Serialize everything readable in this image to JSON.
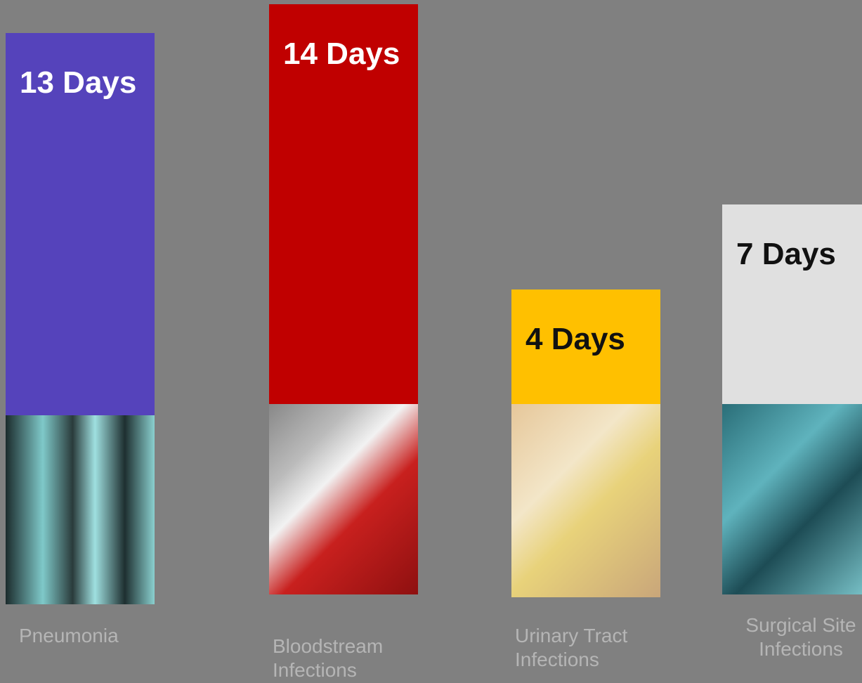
{
  "chart_data": {
    "type": "bar",
    "categories": [
      "Pneumonia",
      "Bloodstream\nInfections",
      "Urinary Tract\nInfections",
      "Surgical Site\nInfections"
    ],
    "values": [
      13,
      14,
      4,
      7
    ],
    "value_labels": [
      "13 Days",
      "14 Days",
      "4 Days",
      "7 Days"
    ],
    "colors": [
      "#5543bb",
      "#c00000",
      "#ffc000",
      "#e0e0e0"
    ]
  }
}
